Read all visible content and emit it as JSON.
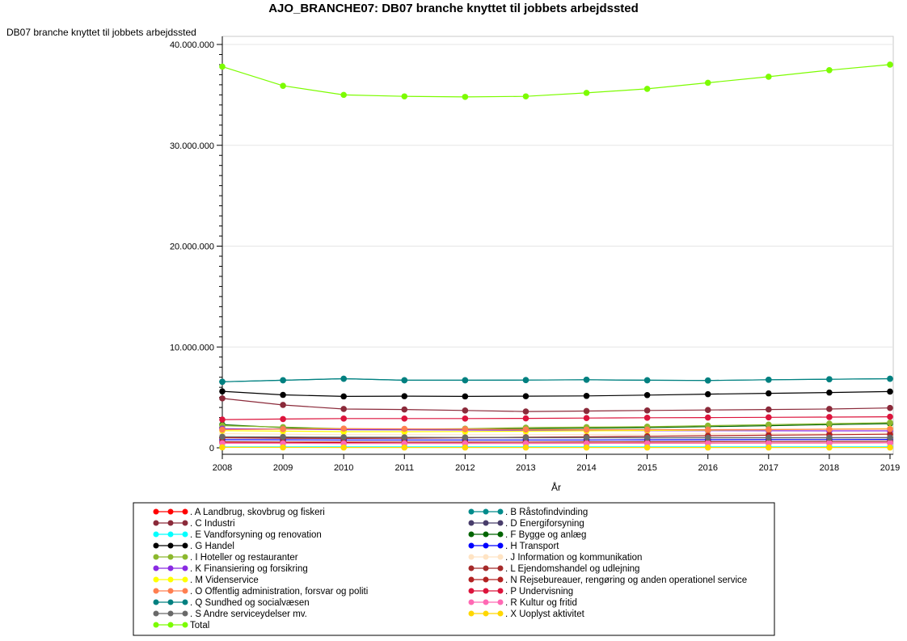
{
  "chart_data": {
    "type": "line",
    "title": "AJO_BRANCHE07: DB07 branche knyttet til jobbets arbejdssted",
    "ylabel": "DB07 branche knyttet til jobbets arbejdssted",
    "xlabel": "År",
    "ylim": [
      0,
      40000000
    ],
    "yticks": [
      0,
      10000000,
      20000000,
      30000000,
      40000000
    ],
    "ytick_labels": [
      "0",
      "10.000.000",
      "20.000.000",
      "30.000.000",
      "40.000.000"
    ],
    "x": [
      2008,
      2009,
      2010,
      2011,
      2012,
      2013,
      2014,
      2015,
      2016,
      2017,
      2018,
      2019
    ],
    "x_labels": [
      "2008",
      "2009",
      "2010",
      "2011",
      "2012",
      "2013",
      "2014",
      "2015",
      "2016",
      "2017",
      "2018",
      "2019"
    ],
    "series": [
      {
        "name": ". A Landbrug, skovbrug og fiskeri",
        "color": "#ff0000",
        "values": [
          500000,
          480000,
          470000,
          460000,
          460000,
          460000,
          460000,
          470000,
          470000,
          480000,
          480000,
          490000
        ]
      },
      {
        "name": ". B Råstofindvinding",
        "color": "#008b8b",
        "values": [
          6550000,
          6700000,
          6850000,
          6700000,
          6700000,
          6720000,
          6750000,
          6700000,
          6680000,
          6750000,
          6800000,
          6850000
        ]
      },
      {
        "name": ". C Industri",
        "color": "#8b2a3a",
        "values": [
          4900000,
          4250000,
          3850000,
          3800000,
          3700000,
          3600000,
          3650000,
          3700000,
          3750000,
          3800000,
          3850000,
          3950000
        ]
      },
      {
        "name": ". D Energiforsyning",
        "color": "#483d6b",
        "values": [
          1000000,
          1000000,
          1000000,
          1000000,
          1000000,
          1000000,
          1000000,
          1000000,
          1000000,
          1000000,
          1000000,
          1000000
        ]
      },
      {
        "name": ". E Vandforsyning og renovation",
        "color": "#00ffff",
        "values": [
          100000,
          100000,
          100000,
          100000,
          100000,
          100000,
          100000,
          100000,
          100000,
          100000,
          100000,
          100000
        ]
      },
      {
        "name": ". F Bygge og anlæg",
        "color": "#006400",
        "values": [
          2300000,
          2000000,
          1800000,
          1800000,
          1850000,
          1900000,
          1950000,
          2000000,
          2100000,
          2200000,
          2300000,
          2400000
        ]
      },
      {
        "name": ". G Handel",
        "color": "#000000",
        "values": [
          5600000,
          5250000,
          5100000,
          5120000,
          5100000,
          5120000,
          5150000,
          5230000,
          5320000,
          5400000,
          5480000,
          5580000
        ]
      },
      {
        "name": ". H Transport",
        "color": "#0000ff",
        "values": [
          800000,
          790000,
          780000,
          780000,
          780000,
          780000,
          780000,
          790000,
          800000,
          810000,
          820000,
          830000
        ]
      },
      {
        "name": ". I Hoteller og restauranter",
        "color": "#8cb82e",
        "values": [
          2200000,
          2050000,
          1900000,
          1850000,
          1900000,
          2000000,
          2050000,
          2100000,
          2200000,
          2300000,
          2400000,
          2500000
        ]
      },
      {
        "name": ". J Information og kommunikation",
        "color": "#ffe4c4",
        "values": [
          1400000,
          1350000,
          1300000,
          1300000,
          1300000,
          1300000,
          1320000,
          1350000,
          1380000,
          1400000,
          1420000,
          1450000
        ]
      },
      {
        "name": ". K Finansiering og forsikring",
        "color": "#8a2be2",
        "values": [
          1900000,
          1850000,
          1800000,
          1780000,
          1760000,
          1740000,
          1720000,
          1700000,
          1700000,
          1690000,
          1680000,
          1680000
        ]
      },
      {
        "name": ". L Ejendomshandel og udlejning",
        "color": "#a52a2a",
        "values": [
          600000,
          580000,
          570000,
          570000,
          570000,
          580000,
          590000,
          600000,
          610000,
          620000,
          630000,
          640000
        ]
      },
      {
        "name": ". M Videnservice",
        "color": "#ffff00",
        "values": [
          1700000,
          1650000,
          1600000,
          1600000,
          1620000,
          1650000,
          1680000,
          1720000,
          1760000,
          1800000,
          1850000,
          1900000
        ]
      },
      {
        "name": ". N Rejsebureauer, rengøring og anden operationel service",
        "color": "#b22222",
        "values": [
          1000000,
          950000,
          930000,
          950000,
          1000000,
          1050000,
          1100000,
          1150000,
          1200000,
          1250000,
          1300000,
          1350000
        ]
      },
      {
        "name": ". O Offentlig administration, forsvar og politi",
        "color": "#ff7f50",
        "values": [
          1800000,
          1850000,
          1900000,
          1880000,
          1850000,
          1820000,
          1800000,
          1800000,
          1800000,
          1820000,
          1840000,
          1860000
        ]
      },
      {
        "name": ". P Undervisning",
        "color": "#dc143c",
        "values": [
          2800000,
          2850000,
          2900000,
          2900000,
          2900000,
          2920000,
          2950000,
          2980000,
          3000000,
          3020000,
          3050000,
          3080000
        ]
      },
      {
        "name": ". Q Sundhed og socialvæsen",
        "color": "#008080",
        "values": [
          6550000,
          6700000,
          6850000,
          6700000,
          6700000,
          6720000,
          6750000,
          6700000,
          6680000,
          6750000,
          6800000,
          6850000
        ]
      },
      {
        "name": ". R Kultur og fritid",
        "color": "#ff69b4",
        "values": [
          450000,
          440000,
          430000,
          430000,
          430000,
          430000,
          440000,
          450000,
          460000,
          470000,
          480000,
          490000
        ]
      },
      {
        "name": ". S Andre serviceydelser  mv.",
        "color": "#696969",
        "values": [
          1100000,
          1080000,
          1050000,
          1040000,
          1030000,
          1020000,
          1010000,
          1000000,
          1000000,
          1000000,
          1000000,
          1010000
        ]
      },
      {
        "name": ". X Uoplyst aktivitet",
        "color": "#ffd700",
        "values": [
          50000,
          40000,
          30000,
          30000,
          30000,
          30000,
          30000,
          30000,
          30000,
          30000,
          30000,
          30000
        ]
      },
      {
        "name": "Total",
        "color": "#7cfc00",
        "values": [
          37800000,
          35900000,
          35000000,
          34850000,
          34800000,
          34850000,
          35200000,
          35600000,
          36200000,
          36800000,
          37450000,
          38000000
        ]
      }
    ],
    "legend_position": "bottom"
  }
}
